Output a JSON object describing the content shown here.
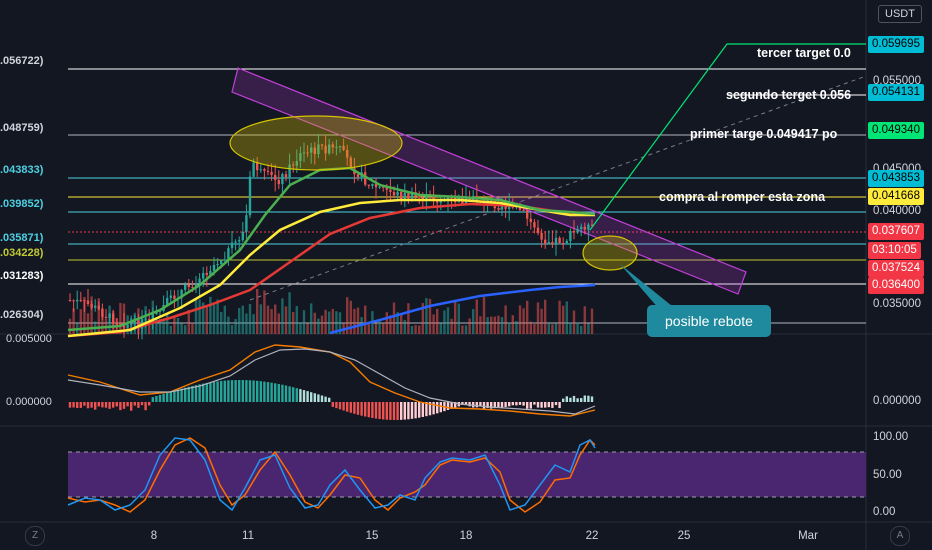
{
  "currency": "USDT",
  "right_axis": {
    "main_ticks": [
      "0.055000",
      "0.045000",
      "0.040000",
      "0.035000"
    ],
    "price_tags": [
      {
        "text": "0.059695",
        "bg": "#00bcd4",
        "fg": "#000000"
      },
      {
        "text": "0.054131",
        "bg": "#00bcd4",
        "fg": "#000000"
      },
      {
        "text": "0.049340",
        "bg": "#00e676",
        "fg": "#000000"
      },
      {
        "text": "0.043853",
        "bg": "#00bcd4",
        "fg": "#000000"
      },
      {
        "text": "0.041668",
        "bg": "#ffeb3b",
        "fg": "#000000"
      },
      {
        "text": "0.037607",
        "bg": "#f23645",
        "fg": "#ffffff"
      },
      {
        "text": "03:10:05",
        "bg": "#f23645",
        "fg": "#ffffff"
      },
      {
        "text": "0.037524",
        "bg": "#f23645",
        "fg": "#ffffff"
      },
      {
        "text": "0.036400",
        "bg": "#f23645",
        "fg": "#ffffff"
      }
    ],
    "macd_ticks": [
      "0.000000"
    ],
    "stoch_ticks": [
      "100.00",
      "50.00",
      "0.00"
    ]
  },
  "left_labels": [
    {
      "text": ".056722)",
      "color": "#ffffff"
    },
    {
      "text": ".048759)",
      "color": "#d1d4dc"
    },
    {
      "text": ".043833)",
      "color": "#4dd0e1"
    },
    {
      "text": ".039852)",
      "color": "#4dd0e1"
    },
    {
      "text": ".035871)",
      "color": "#4dd0e1"
    },
    {
      "text": ".034228)",
      "color": "#c0ca33"
    },
    {
      "text": ".031283)",
      "color": "#ffffff"
    },
    {
      "text": ".026304)",
      "color": "#d1d4dc"
    },
    {
      "text": "0.005000",
      "color": "#d1d4dc"
    },
    {
      "text": "0.000000",
      "color": "#d1d4dc"
    }
  ],
  "annotations": {
    "tercer": "tercer target 0.0",
    "segundo": "segundo terget 0.056",
    "primer": "primer targe 0.049417 po",
    "compra": "compra al romper esta zona",
    "rebote": "posible rebote"
  },
  "x_axis": {
    "ticks": [
      "8",
      "11",
      "15",
      "18",
      "22",
      "25",
      "Mar"
    ]
  },
  "corner_buttons": {
    "left": "Z",
    "right": "A"
  },
  "colors": {
    "background": "#131722",
    "bull": "#26a69a",
    "bear": "#ef5350",
    "channel": "#c03fd8",
    "ema_green": "#4caf50",
    "ema_yellow": "#ffeb3b",
    "ema_red": "#e53935",
    "ema_blue": "#2962ff",
    "zone_fill": "#c8b400",
    "stoch_band": "#4a2670"
  },
  "chart_data": {
    "type": "candlestick",
    "x": [
      "8",
      "11",
      "15",
      "18",
      "22",
      "25",
      "Mar"
    ],
    "price_close_approx": [
      0.0262,
      0.0275,
      0.03,
      0.033,
      0.044,
      0.0458,
      0.047,
      0.0445,
      0.043,
      0.0425,
      0.0418,
      0.0414,
      0.041,
      0.0402,
      0.039,
      0.0376
    ],
    "levels": [
      0.056722,
      0.048759,
      0.043833,
      0.039852,
      0.035871,
      0.034228,
      0.031283,
      0.026304
    ],
    "targets": [
      0.059695,
      0.054131,
      0.04934,
      0.041668
    ],
    "current_price": 0.037607,
    "stoch_band": [
      20,
      80
    ],
    "stoch_k_approx": [
      20,
      10,
      90,
      95,
      60,
      15,
      85,
      40,
      15,
      75,
      90,
      20,
      10,
      90,
      95
    ]
  }
}
